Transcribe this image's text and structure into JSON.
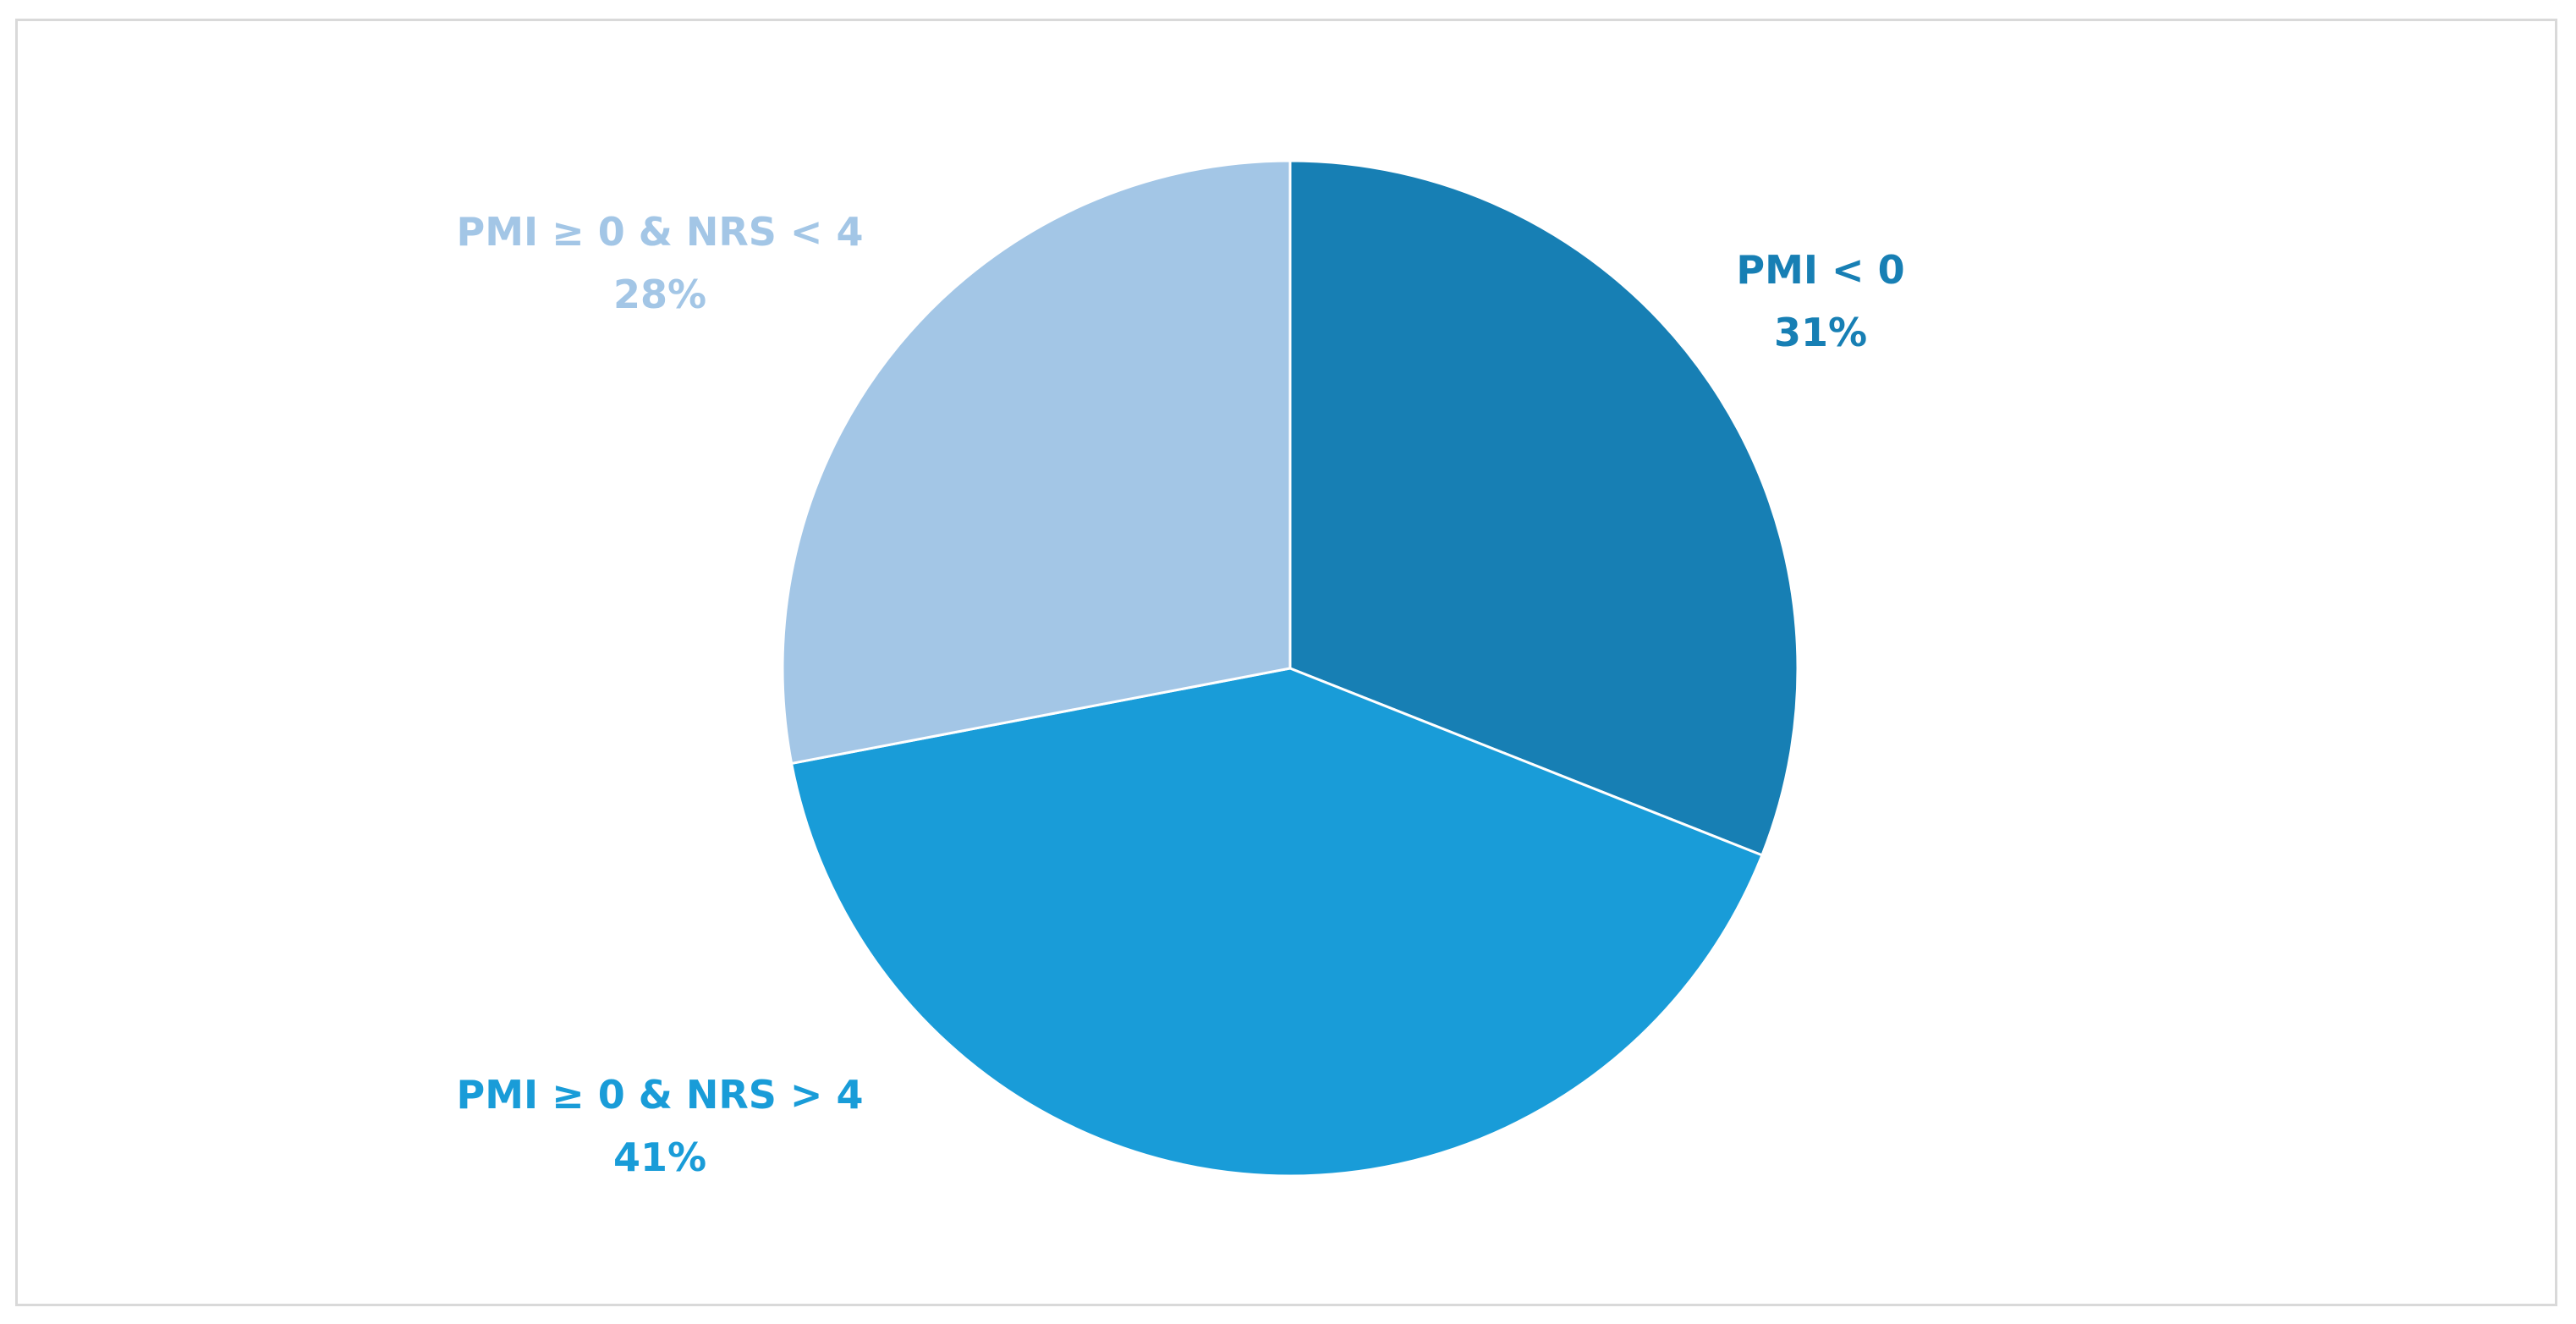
{
  "chart_data": {
    "type": "pie",
    "start_angle_deg": 0,
    "direction": "clockwise",
    "slices": [
      {
        "name": "PMI < 0",
        "value": 31,
        "label": "31%",
        "color": "#177fb4"
      },
      {
        "name": "PMI ≥ 0 & NRS > 4",
        "value": 41,
        "label": "41%",
        "color": "#199cd8"
      },
      {
        "name": "PMI ≥ 0 & NRS < 4",
        "value": 28,
        "label": "28%",
        "color": "#a3c6e6"
      }
    ]
  }
}
